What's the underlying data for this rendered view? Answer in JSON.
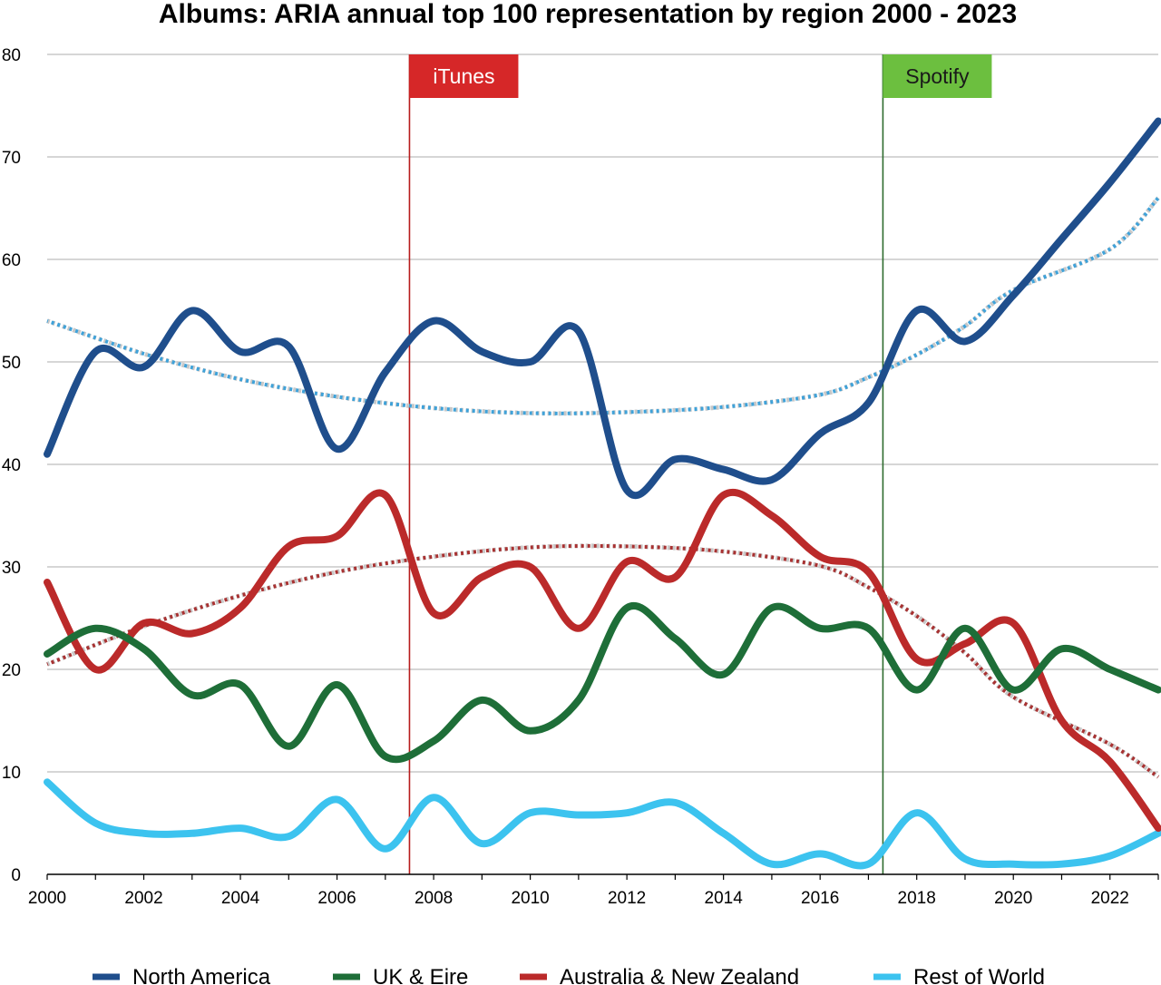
{
  "chart_data": {
    "type": "line",
    "title": "Albums: ARIA annual top 100 representation by region 2000 - 2023",
    "xlabel": "",
    "ylabel": "",
    "xlim": [
      2000,
      2023
    ],
    "ylim": [
      0,
      80
    ],
    "x_ticks": [
      2000,
      2002,
      2004,
      2006,
      2008,
      2010,
      2012,
      2014,
      2016,
      2018,
      2020,
      2022
    ],
    "y_ticks": [
      0,
      10,
      20,
      30,
      40,
      50,
      60,
      70,
      80
    ],
    "grid": "horizontal",
    "legend_position": "bottom",
    "x": [
      2000,
      2001,
      2002,
      2003,
      2004,
      2005,
      2006,
      2007,
      2008,
      2009,
      2010,
      2011,
      2012,
      2013,
      2014,
      2015,
      2016,
      2017,
      2018,
      2019,
      2020,
      2021,
      2022,
      2023
    ],
    "series": [
      {
        "name": "North America",
        "color": "#1f4e8c",
        "values": [
          41,
          51,
          49.5,
          55,
          51,
          51.5,
          41.5,
          49,
          54,
          51,
          50,
          53,
          37.5,
          40.5,
          39.5,
          38.5,
          43,
          46,
          55,
          52,
          56.5,
          62,
          67.5,
          73.5
        ],
        "trend": {
          "color": "#3fa2d9",
          "values": [
            54,
            50.8,
            48.3,
            46.6,
            45.5,
            45,
            45.1,
            45.6,
            46.8,
            48.5,
            50.7,
            53.5,
            57,
            61,
            66
          ]
        }
      },
      {
        "name": "UK & Eire",
        "color": "#1e6e38",
        "values": [
          21.5,
          24,
          22,
          17.5,
          18.5,
          12.5,
          18.5,
          11.5,
          13,
          17,
          14,
          17,
          26,
          23,
          19.5,
          26,
          24,
          24,
          18,
          24,
          18,
          22,
          20,
          18
        ]
      },
      {
        "name": "Australia & New Zealand",
        "color": "#bb2a2a",
        "values": [
          28.5,
          20,
          24.5,
          23.5,
          26,
          32,
          33,
          37,
          25.5,
          29,
          30,
          24,
          30.5,
          29,
          37,
          35,
          31,
          29.5,
          21,
          22.5,
          24.5,
          15,
          11,
          4.5
        ],
        "trend": {
          "color": "#a83232",
          "values": [
            20.5,
            24.2,
            27.2,
            29.5,
            31,
            31.9,
            32,
            31.5,
            30.1,
            28,
            25.2,
            21.6,
            17.3,
            12.7,
            9.5
          ]
        }
      },
      {
        "name": "Rest of World",
        "color": "#3cc3ef",
        "values": [
          9,
          5,
          4,
          4,
          4.5,
          3.7,
          7.3,
          2.5,
          7.5,
          3,
          6,
          5.8,
          6,
          7,
          4,
          1,
          2,
          1,
          6,
          1.5,
          1,
          1,
          1.8,
          4
        ]
      }
    ],
    "trend_x": [
      2000,
      2002,
      2004,
      2006,
      2008,
      2010,
      2012,
      2014,
      2016,
      2017,
      2018,
      2019,
      2020,
      2022,
      2023
    ],
    "annotations": [
      {
        "label": "iTunes",
        "x": 2007.5,
        "color": "#d62728",
        "line_color": "#b71c1c",
        "text_color": "#ffffff"
      },
      {
        "label": "Spotify",
        "x": 2017.3,
        "color": "#6cbf3f",
        "line_color": "#2e6b2e",
        "text_color": "#1a1a1a"
      }
    ]
  }
}
